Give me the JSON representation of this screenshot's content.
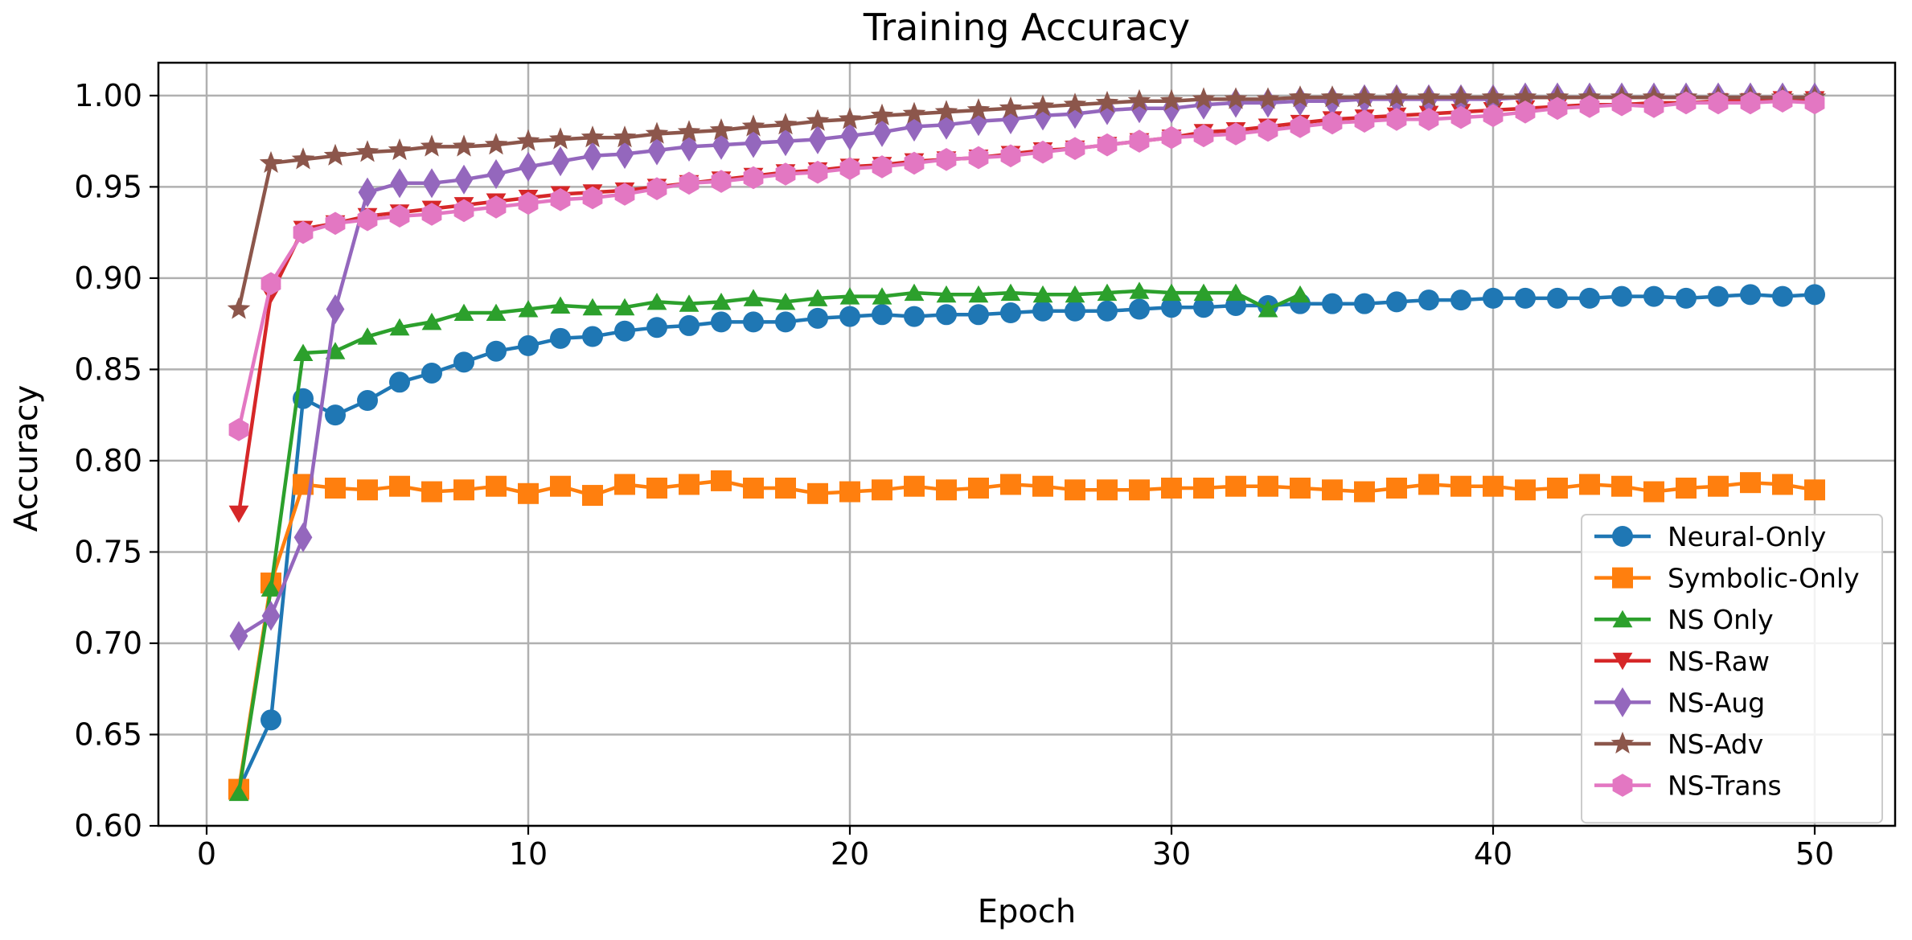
{
  "chart_data": {
    "type": "line",
    "title": "Training Accuracy",
    "xlabel": "Epoch",
    "ylabel": "Accuracy",
    "xlim": [
      -1.5,
      52.5
    ],
    "ylim": [
      0.6,
      1.018
    ],
    "xticks": [
      0,
      10,
      20,
      30,
      40,
      50
    ],
    "yticks": [
      0.6,
      0.65,
      0.7,
      0.75,
      0.8,
      0.85,
      0.9,
      0.95,
      1.0
    ],
    "xtick_labels": [
      "0",
      "10",
      "20",
      "30",
      "40",
      "50"
    ],
    "ytick_labels": [
      "0.60",
      "0.65",
      "0.70",
      "0.75",
      "0.80",
      "0.85",
      "0.90",
      "0.95",
      "1.00"
    ],
    "grid": true,
    "legend_position": "lower right",
    "series": [
      {
        "name": "Neural-Only",
        "color": "#1f77b4",
        "marker": "circle",
        "x": [
          1,
          2,
          3,
          4,
          5,
          6,
          7,
          8,
          9,
          10,
          11,
          12,
          13,
          14,
          15,
          16,
          17,
          18,
          19,
          20,
          21,
          22,
          23,
          24,
          25,
          26,
          27,
          28,
          29,
          30,
          31,
          32,
          33,
          34,
          35,
          36,
          37,
          38,
          39,
          40,
          41,
          42,
          43,
          44,
          45,
          46,
          47,
          48,
          49,
          50
        ],
        "y": [
          0.62,
          0.658,
          0.834,
          0.825,
          0.833,
          0.843,
          0.848,
          0.854,
          0.86,
          0.863,
          0.867,
          0.868,
          0.871,
          0.873,
          0.874,
          0.876,
          0.876,
          0.876,
          0.878,
          0.879,
          0.88,
          0.879,
          0.88,
          0.88,
          0.881,
          0.882,
          0.882,
          0.882,
          0.883,
          0.884,
          0.884,
          0.885,
          0.885,
          0.886,
          0.886,
          0.886,
          0.887,
          0.888,
          0.888,
          0.889,
          0.889,
          0.889,
          0.889,
          0.89,
          0.89,
          0.889,
          0.89,
          0.891,
          0.89,
          0.891
        ]
      },
      {
        "name": "Symbolic-Only",
        "color": "#ff7f0e",
        "marker": "square",
        "x": [
          1,
          2,
          3,
          4,
          5,
          6,
          7,
          8,
          9,
          10,
          11,
          12,
          13,
          14,
          15,
          16,
          17,
          18,
          19,
          20,
          21,
          22,
          23,
          24,
          25,
          26,
          27,
          28,
          29,
          30,
          31,
          32,
          33,
          34,
          35,
          36,
          37,
          38,
          39,
          40,
          41,
          42,
          43,
          44,
          45,
          46,
          47,
          48,
          49,
          50
        ],
        "y": [
          0.62,
          0.733,
          0.787,
          0.785,
          0.784,
          0.786,
          0.783,
          0.784,
          0.786,
          0.782,
          0.786,
          0.781,
          0.787,
          0.785,
          0.787,
          0.789,
          0.785,
          0.785,
          0.782,
          0.783,
          0.784,
          0.786,
          0.784,
          0.785,
          0.787,
          0.786,
          0.784,
          0.784,
          0.784,
          0.785,
          0.785,
          0.786,
          0.786,
          0.785,
          0.784,
          0.783,
          0.785,
          0.787,
          0.786,
          0.786,
          0.784,
          0.785,
          0.787,
          0.786,
          0.783,
          0.785,
          0.786,
          0.788,
          0.787,
          0.784
        ]
      },
      {
        "name": "NS Only",
        "color": "#2ca02c",
        "marker": "triangle-up",
        "x": [
          1,
          2,
          3,
          4,
          5,
          6,
          7,
          8,
          9,
          10,
          11,
          12,
          13,
          14,
          15,
          16,
          17,
          18,
          19,
          20,
          21,
          22,
          23,
          24,
          25,
          26,
          27,
          28,
          29,
          30,
          31,
          32,
          33,
          34
        ],
        "y": [
          0.618,
          0.73,
          0.859,
          0.86,
          0.868,
          0.873,
          0.876,
          0.881,
          0.881,
          0.883,
          0.885,
          0.884,
          0.884,
          0.887,
          0.886,
          0.887,
          0.889,
          0.887,
          0.889,
          0.89,
          0.89,
          0.892,
          0.891,
          0.891,
          0.892,
          0.891,
          0.891,
          0.892,
          0.893,
          0.892,
          0.892,
          0.892,
          0.883,
          0.891
        ]
      },
      {
        "name": "NS-Raw",
        "color": "#d62728",
        "marker": "triangle-down",
        "x": [
          1,
          2,
          3,
          4,
          5,
          6,
          7,
          8,
          9,
          10,
          11,
          12,
          13,
          14,
          15,
          16,
          17,
          18,
          19,
          20,
          21,
          22,
          23,
          24,
          25,
          26,
          27,
          28,
          29,
          30,
          31,
          32,
          33,
          34,
          35,
          36,
          37,
          38,
          39,
          40,
          41,
          42,
          43,
          44,
          45,
          46,
          47,
          48,
          49,
          50
        ],
        "y": [
          0.771,
          0.891,
          0.927,
          0.93,
          0.934,
          0.936,
          0.938,
          0.94,
          0.942,
          0.944,
          0.946,
          0.947,
          0.948,
          0.95,
          0.952,
          0.954,
          0.956,
          0.958,
          0.959,
          0.961,
          0.962,
          0.964,
          0.965,
          0.966,
          0.968,
          0.97,
          0.971,
          0.973,
          0.975,
          0.977,
          0.98,
          0.981,
          0.983,
          0.985,
          0.987,
          0.988,
          0.989,
          0.99,
          0.991,
          0.992,
          0.993,
          0.994,
          0.995,
          0.995,
          0.996,
          0.996,
          0.997,
          0.997,
          0.998,
          0.998
        ]
      },
      {
        "name": "NS-Aug",
        "color": "#9467bd",
        "marker": "diamond",
        "x": [
          1,
          2,
          3,
          4,
          5,
          6,
          7,
          8,
          9,
          10,
          11,
          12,
          13,
          14,
          15,
          16,
          17,
          18,
          19,
          20,
          21,
          22,
          23,
          24,
          25,
          26,
          27,
          28,
          29,
          30,
          31,
          32,
          33,
          34,
          35,
          36,
          37,
          38,
          39,
          40,
          41,
          42,
          43,
          44,
          45,
          46,
          47,
          48,
          49,
          50
        ],
        "y": [
          0.704,
          0.715,
          0.758,
          0.883,
          0.947,
          0.952,
          0.952,
          0.954,
          0.957,
          0.961,
          0.964,
          0.967,
          0.968,
          0.97,
          0.972,
          0.973,
          0.974,
          0.975,
          0.976,
          0.978,
          0.98,
          0.983,
          0.984,
          0.986,
          0.987,
          0.989,
          0.99,
          0.992,
          0.993,
          0.993,
          0.995,
          0.996,
          0.996,
          0.997,
          0.997,
          0.998,
          0.998,
          0.998,
          0.998,
          0.998,
          0.999,
          0.999,
          0.999,
          0.999,
          0.999,
          0.999,
          0.999,
          0.999,
          0.999,
          0.999
        ]
      },
      {
        "name": "NS-Adv",
        "color": "#8c564b",
        "marker": "star",
        "x": [
          1,
          2,
          3,
          4,
          5,
          6,
          7,
          8,
          9,
          10,
          11,
          12,
          13,
          14,
          15,
          16,
          17,
          18,
          19,
          20,
          21,
          22,
          23,
          24,
          25,
          26,
          27,
          28,
          29,
          30,
          31,
          32,
          33,
          34,
          35,
          36,
          37,
          38,
          39,
          40,
          41,
          42,
          43,
          44,
          45,
          46,
          47,
          48,
          49,
          50
        ],
        "y": [
          0.883,
          0.963,
          0.965,
          0.967,
          0.969,
          0.97,
          0.972,
          0.972,
          0.973,
          0.975,
          0.976,
          0.977,
          0.977,
          0.979,
          0.98,
          0.981,
          0.983,
          0.984,
          0.986,
          0.987,
          0.989,
          0.99,
          0.991,
          0.992,
          0.993,
          0.994,
          0.995,
          0.996,
          0.997,
          0.997,
          0.998,
          0.998,
          0.998,
          0.999,
          0.999,
          0.999,
          0.999,
          0.999,
          0.999,
          0.999,
          0.999,
          0.999,
          0.999,
          0.999,
          0.999,
          0.999,
          0.999,
          0.999,
          0.999,
          0.999
        ]
      },
      {
        "name": "NS-Trans",
        "color": "#e377c2",
        "marker": "hexagon",
        "x": [
          1,
          2,
          3,
          4,
          5,
          6,
          7,
          8,
          9,
          10,
          11,
          12,
          13,
          14,
          15,
          16,
          17,
          18,
          19,
          20,
          21,
          22,
          23,
          24,
          25,
          26,
          27,
          28,
          29,
          30,
          31,
          32,
          33,
          34,
          35,
          36,
          37,
          38,
          39,
          40,
          41,
          42,
          43,
          44,
          45,
          46,
          47,
          48,
          49,
          50
        ],
        "y": [
          0.817,
          0.897,
          0.925,
          0.93,
          0.932,
          0.934,
          0.935,
          0.937,
          0.939,
          0.941,
          0.943,
          0.944,
          0.946,
          0.949,
          0.952,
          0.953,
          0.955,
          0.957,
          0.958,
          0.96,
          0.961,
          0.963,
          0.965,
          0.966,
          0.967,
          0.969,
          0.971,
          0.973,
          0.975,
          0.977,
          0.978,
          0.979,
          0.981,
          0.983,
          0.985,
          0.986,
          0.987,
          0.987,
          0.988,
          0.989,
          0.991,
          0.993,
          0.994,
          0.995,
          0.994,
          0.996,
          0.996,
          0.996,
          0.997,
          0.996
        ]
      }
    ]
  }
}
